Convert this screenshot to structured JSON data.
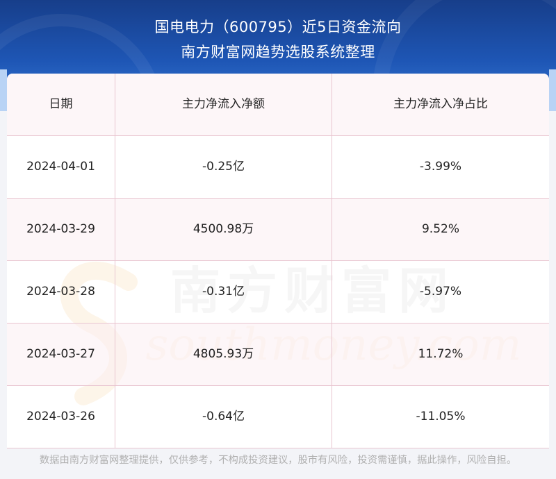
{
  "title": {
    "line1": "国电电力（600795）近5日资金流向",
    "line2": "南方财富网趋势选股系统整理"
  },
  "watermark": {
    "cn": "南方财富网",
    "en": "southmoney.com"
  },
  "chart_data": {
    "type": "table",
    "columns": [
      "日期",
      "主力净流入净额",
      "主力净流入净占比"
    ],
    "rows": [
      [
        "2024-04-01",
        "-0.25亿",
        "-3.99%"
      ],
      [
        "2024-03-29",
        "4500.98万",
        "9.52%"
      ],
      [
        "2024-03-28",
        "-0.31亿",
        "-5.97%"
      ],
      [
        "2024-03-27",
        "4805.93万",
        "11.72%"
      ],
      [
        "2024-03-26",
        "-0.64亿",
        "-11.05%"
      ]
    ]
  },
  "footer": {
    "disclaimer": "数据由南方财富网整理提供，仅供参考，不构成投资建议，股市有风险，投资需谨慎，据此操作，风险自担。"
  },
  "colors": {
    "header_bg": "#1e56b5",
    "row_alt_bg": "#fdf3f6",
    "grid_line": "#e8c4cf",
    "watermark_cn": "#c9c9c9",
    "watermark_en": "#f6d8a8"
  }
}
